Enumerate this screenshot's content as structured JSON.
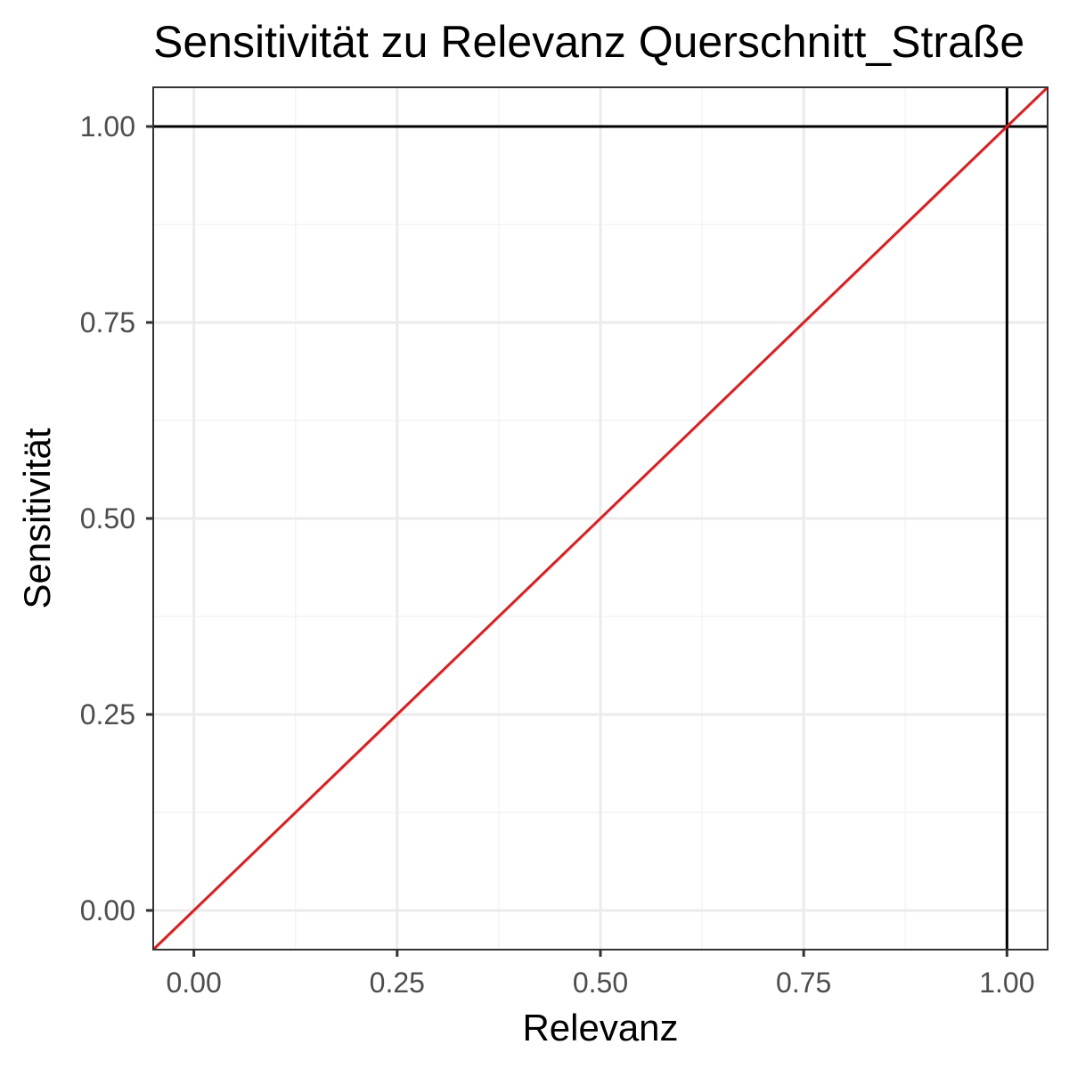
{
  "chart_data": {
    "type": "line",
    "title": "Sensitivität zu Relevanz Querschnitt_Straße",
    "xlabel": "Relevanz",
    "ylabel": "Sensitivität",
    "xlim": [
      -0.05,
      1.05
    ],
    "ylim": [
      -0.05,
      1.05
    ],
    "x_ticks": [
      0.0,
      0.25,
      0.5,
      0.75,
      1.0
    ],
    "y_ticks": [
      0.0,
      0.25,
      0.5,
      0.75,
      1.0
    ],
    "x_tick_labels": [
      "0.00",
      "0.25",
      "0.50",
      "0.75",
      "1.00"
    ],
    "y_tick_labels": [
      "0.00",
      "0.25",
      "0.50",
      "0.75",
      "1.00"
    ],
    "grid": true,
    "series": [
      {
        "x": [
          -0.05,
          1.05
        ],
        "y": [
          -0.05,
          1.05
        ],
        "color": "#e41a1c"
      }
    ],
    "reference_lines": {
      "horizontal_y": 1.0,
      "vertical_x": 1.0,
      "color": "#000000"
    },
    "colors": {
      "panel_border": "#333333",
      "grid_major": "#ebebeb",
      "grid_minor": "#f4f4f4",
      "tick_text": "#4d4d4d"
    }
  }
}
